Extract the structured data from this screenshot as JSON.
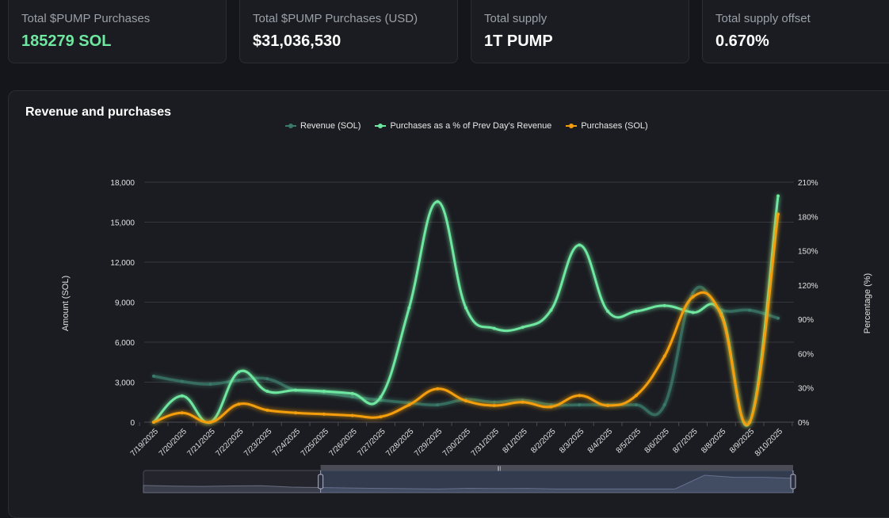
{
  "stats": [
    {
      "label": "Total $PUMP Purchases",
      "value": "185279 SOL",
      "accent": "#6ee7a0"
    },
    {
      "label": "Total $PUMP Purchases (USD)",
      "value": "$31,036,530"
    },
    {
      "label": "Total supply",
      "value": "1T PUMP"
    },
    {
      "label": "Total supply offset",
      "value": "0.670%"
    }
  ],
  "chart_data": {
    "type": "line",
    "title": "Revenue and purchases",
    "ylabel": "Amount (SOL)",
    "y2label": "Percentage (%)",
    "ylim": [
      0,
      18000
    ],
    "y2lim": [
      0,
      210
    ],
    "yticks": [
      "0",
      "3,000",
      "6,000",
      "9,000",
      "12,000",
      "15,000",
      "18,000"
    ],
    "y2ticks": [
      "0%",
      "30%",
      "60%",
      "90%",
      "120%",
      "150%",
      "180%",
      "210%"
    ],
    "grid": true,
    "legend": "top-center",
    "categories": [
      "7/19/2025",
      "7/20/2025",
      "7/21/2025",
      "7/22/2025",
      "7/23/2025",
      "7/24/2025",
      "7/25/2025",
      "7/26/2025",
      "7/27/2025",
      "7/28/2025",
      "7/29/2025",
      "7/30/2025",
      "7/31/2025",
      "8/1/2025",
      "8/2/2025",
      "8/3/2025",
      "8/4/2025",
      "8/5/2025",
      "8/6/2025",
      "8/7/2025",
      "8/8/2025",
      "8/9/2025",
      "8/10/2025"
    ],
    "series": [
      {
        "name": "Revenue (SOL)",
        "axis": "left",
        "color": "#3a7a68",
        "values": [
          3450,
          3050,
          2850,
          3150,
          3250,
          2400,
          2200,
          1900,
          1650,
          1450,
          1300,
          1700,
          1500,
          1650,
          1300,
          1300,
          1300,
          1300,
          1300,
          9700,
          8400,
          8400,
          7800
        ]
      },
      {
        "name": "Purchases as a % of Prev Day's Revenue",
        "axis": "right",
        "color": "#6ee7a0",
        "values": [
          0,
          23,
          0,
          44,
          27,
          28,
          27,
          25,
          22,
          100,
          193,
          100,
          82,
          83,
          98,
          155,
          97,
          97,
          102,
          96,
          95,
          0,
          198
        ]
      },
      {
        "name": "Purchases (SOL)",
        "axis": "left",
        "color": "#f59e0b",
        "values": [
          0,
          700,
          0,
          1350,
          900,
          700,
          600,
          500,
          400,
          1300,
          2500,
          1600,
          1250,
          1500,
          1150,
          2000,
          1250,
          2000,
          4950,
          9400,
          8000,
          0,
          15600
        ]
      }
    ]
  },
  "zoom_slider": {
    "start_index": 6,
    "end_index": 22,
    "handle_glyph": "|||"
  }
}
